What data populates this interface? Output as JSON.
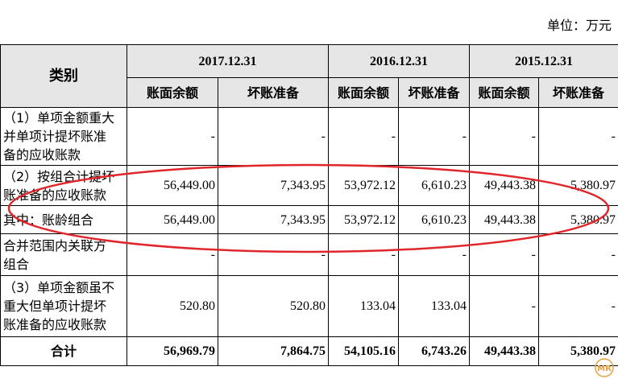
{
  "unit_label": "单位：万元",
  "header": {
    "category": "类别",
    "years": [
      "2017.12.31",
      "2016.12.31",
      "2015.12.31"
    ],
    "sub_cols": [
      "账面余额",
      "坏账准备",
      "账面余额",
      "坏账准备",
      "账面余额",
      "坏账准备"
    ]
  },
  "rows": [
    {
      "category": "（1）单项金额重大\n并单项计提坏账准\n备的应收账款",
      "values": [
        "-",
        "-",
        "-",
        "-",
        "-",
        "-"
      ]
    },
    {
      "category": "（2）按组合计提坏\n账准备的应收账款",
      "values": [
        "56,449.00",
        "7,343.95",
        "53,972.12",
        "6,610.23",
        "49,443.38",
        "5,380.97"
      ]
    },
    {
      "category": "其中：账龄组合",
      "values": [
        "56,449.00",
        "7,343.95",
        "53,972.12",
        "6,610.23",
        "49,443.38",
        "5,380.97"
      ]
    },
    {
      "category": "合并范围内关联方\n组合",
      "values": [
        "-",
        "-",
        "-",
        "-",
        "-",
        "-"
      ]
    },
    {
      "category": "（3）单项金额虽不\n重大但单项计提坏\n账准备的应收账款",
      "values": [
        "520.80",
        "520.80",
        "133.04",
        "133.04",
        "-",
        "-"
      ]
    }
  ],
  "total": {
    "category": "合计",
    "values": [
      "56,969.79",
      "7,864.75",
      "54,105.16",
      "6,743.26",
      "49,443.38",
      "5,380.97"
    ]
  },
  "annotation_color": "#e0262a",
  "watermark": "MR"
}
